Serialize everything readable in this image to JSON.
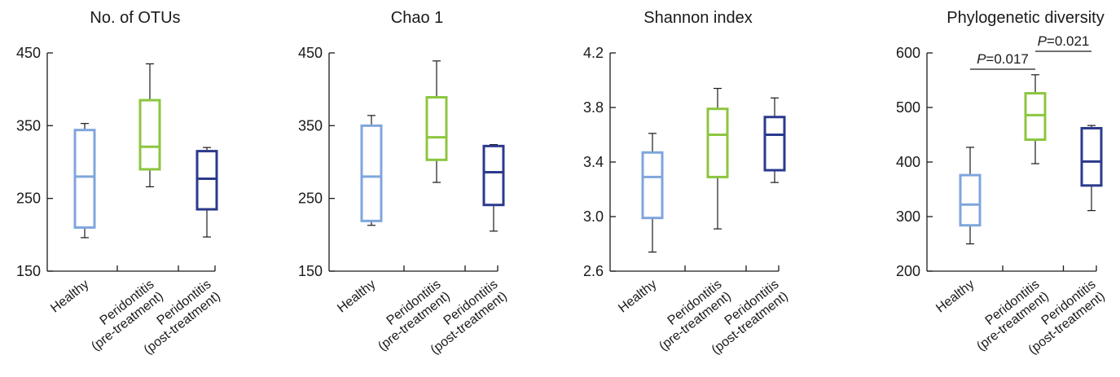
{
  "colors": {
    "Healthy": "#7fa6dc",
    "Peridontitis (pre-treatment)": "#8cc63f",
    "Peridontitis (post-treatment)": "#2b3a8c",
    "axis": "#1a1a1a"
  },
  "chart_data": [
    {
      "type": "box",
      "title": "No. of OTUs",
      "ylim": [
        150,
        450
      ],
      "yticks": [
        "150",
        "250",
        "350",
        "450"
      ],
      "categories": [
        [
          "Healthy"
        ],
        [
          "Peridontitis",
          "(pre-treatment)"
        ],
        [
          "Peridontitis",
          "(post-treatment)"
        ]
      ],
      "series": [
        {
          "category": "Healthy",
          "min": 196,
          "q1": 210,
          "median": 280,
          "q3": 344,
          "max": 353
        },
        {
          "category": "Peridontitis (pre-treatment)",
          "min": 266,
          "q1": 290,
          "median": 321,
          "q3": 385,
          "max": 435
        },
        {
          "category": "Peridontitis (post-treatment)",
          "min": 197,
          "q1": 235,
          "median": 277,
          "q3": 315,
          "max": 320
        }
      ],
      "annotations": []
    },
    {
      "type": "box",
      "title": "Chao 1",
      "ylim": [
        150,
        450
      ],
      "yticks": [
        "150",
        "250",
        "350",
        "450"
      ],
      "categories": [
        [
          "Healthy"
        ],
        [
          "Peridontitis",
          "(pre-treatment)"
        ],
        [
          "Peridontitis",
          "(post-treatment)"
        ]
      ],
      "series": [
        {
          "category": "Healthy",
          "min": 213,
          "q1": 219,
          "median": 280,
          "q3": 350,
          "max": 364
        },
        {
          "category": "Peridontitis (pre-treatment)",
          "min": 272,
          "q1": 303,
          "median": 334,
          "q3": 389,
          "max": 439
        },
        {
          "category": "Peridontitis (post-treatment)",
          "min": 205,
          "q1": 241,
          "median": 286,
          "q3": 322,
          "max": 324
        }
      ],
      "annotations": []
    },
    {
      "type": "box",
      "title": "Shannon index",
      "ylim": [
        2.6,
        4.2
      ],
      "yticks": [
        "2.6",
        "3.0",
        "3.4",
        "3.8",
        "4.2"
      ],
      "categories": [
        [
          "Healthy"
        ],
        [
          "Peridontitis",
          "(pre-treatment)"
        ],
        [
          "Peridontitis",
          "(post-treatment)"
        ]
      ],
      "series": [
        {
          "category": "Healthy",
          "min": 2.74,
          "q1": 2.99,
          "median": 3.29,
          "q3": 3.47,
          "max": 3.61
        },
        {
          "category": "Peridontitis (pre-treatment)",
          "min": 2.91,
          "q1": 3.29,
          "median": 3.6,
          "q3": 3.79,
          "max": 3.94
        },
        {
          "category": "Peridontitis (post-treatment)",
          "min": 3.25,
          "q1": 3.34,
          "median": 3.6,
          "q3": 3.73,
          "max": 3.87
        }
      ],
      "annotations": []
    },
    {
      "type": "box",
      "title": "Phylogenetic diversity",
      "ylim": [
        200,
        600
      ],
      "yticks": [
        "200",
        "300",
        "400",
        "500",
        "600"
      ],
      "categories": [
        [
          "Healthy"
        ],
        [
          "Peridontitis",
          "(pre-treatment)"
        ],
        [
          "Peridontitis",
          "(post-treatment)"
        ]
      ],
      "series": [
        {
          "category": "Healthy",
          "min": 250,
          "q1": 284,
          "median": 322,
          "q3": 376,
          "max": 427
        },
        {
          "category": "Peridontitis (pre-treatment)",
          "min": 397,
          "q1": 441,
          "median": 486,
          "q3": 526,
          "max": 560
        },
        {
          "category": "Peridontitis (post-treatment)",
          "min": 311,
          "q1": 357,
          "median": 401,
          "q3": 462,
          "max": 467
        }
      ],
      "annotations": [
        {
          "p_label": "P",
          "value_text": "=0.017",
          "from": 0,
          "to": 1
        },
        {
          "p_label": "P",
          "value_text": "=0.021",
          "from": 1,
          "to": 2
        }
      ]
    }
  ]
}
